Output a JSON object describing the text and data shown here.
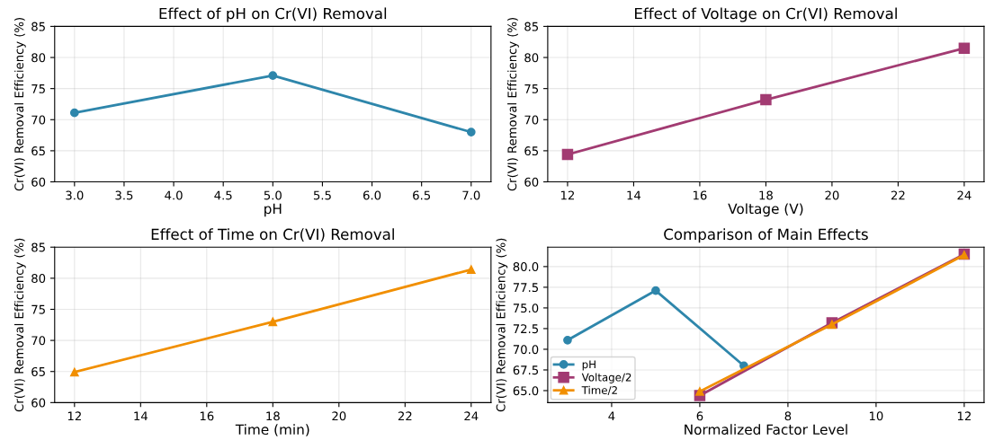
{
  "chart_data": [
    {
      "type": "line",
      "title": "Effect of pH on Cr(VI) Removal",
      "xlabel": "pH",
      "ylabel": "Cr(VI) Removal Efficiency (%)",
      "x": [
        3,
        5,
        7
      ],
      "series": [
        {
          "color": "#2e86ab",
          "values": [
            71.1,
            77.1,
            68.0
          ],
          "marker": "circle"
        }
      ],
      "xlim": [
        2.8,
        7.2
      ],
      "xticks": [
        {
          "value": 3,
          "label": "3.0"
        },
        {
          "value": 3.5,
          "label": "3.5"
        },
        {
          "value": 4,
          "label": "4.0"
        },
        {
          "value": 4.5,
          "label": "4.5"
        },
        {
          "value": 5,
          "label": "5.0"
        },
        {
          "value": 5.5,
          "label": "5.5"
        },
        {
          "value": 6,
          "label": "6.0"
        },
        {
          "value": 6.5,
          "label": "6.5"
        },
        {
          "value": 7,
          "label": "7.0"
        }
      ],
      "ylim": [
        60,
        85
      ],
      "yticks": [
        60,
        65,
        70,
        75,
        80,
        85
      ],
      "grid": true,
      "line_style": "solid"
    },
    {
      "type": "line",
      "title": "Effect of Voltage on Cr(VI) Removal",
      "xlabel": "Voltage (V)",
      "ylabel": "Cr(VI) Removal Efficiency (%)",
      "x": [
        12,
        18,
        24
      ],
      "series": [
        {
          "color": "#a23b72",
          "values": [
            64.4,
            73.2,
            81.5
          ],
          "marker": "square"
        }
      ],
      "xlim": [
        11.4,
        24.6
      ],
      "xticks": [
        12,
        14,
        16,
        18,
        20,
        22,
        24
      ],
      "ylim": [
        60,
        85
      ],
      "yticks": [
        60,
        65,
        70,
        75,
        80,
        85
      ],
      "grid": true,
      "line_style": "solid"
    },
    {
      "type": "line",
      "title": "Effect of Time on Cr(VI) Removal",
      "xlabel": "Time (min)",
      "ylabel": "Cr(VI) Removal Efficiency (%)",
      "x": [
        12,
        18,
        24
      ],
      "series": [
        {
          "color": "#f18f01",
          "values": [
            64.9,
            73.0,
            81.4
          ],
          "marker": "triangle"
        }
      ],
      "xlim": [
        11.4,
        24.6
      ],
      "xticks": [
        12,
        14,
        16,
        18,
        20,
        22,
        24
      ],
      "ylim": [
        60,
        85
      ],
      "yticks": [
        60,
        65,
        70,
        75,
        80,
        85
      ],
      "grid": true,
      "line_style": "solid"
    },
    {
      "type": "line",
      "title": "Comparison of Main Effects",
      "xlabel": "Normalized Factor Level",
      "ylabel": "Cr(VI) Removal Efficiency (%)",
      "series": [
        {
          "name": "pH",
          "color": "#2e86ab",
          "x": [
            3,
            5,
            7
          ],
          "values": [
            71.1,
            77.1,
            68.0
          ],
          "marker": "circle"
        },
        {
          "name": "Voltage/2",
          "color": "#a23b72",
          "x": [
            6,
            9,
            12
          ],
          "values": [
            64.4,
            73.2,
            81.5
          ],
          "marker": "square"
        },
        {
          "name": "Time/2",
          "color": "#f18f01",
          "x": [
            6,
            9,
            12
          ],
          "values": [
            64.9,
            73.0,
            81.4
          ],
          "marker": "triangle"
        }
      ],
      "xlim": [
        2.55,
        12.45
      ],
      "xticks": [
        4,
        6,
        8,
        10,
        12
      ],
      "ylim": [
        63.55,
        82.35
      ],
      "yticks": [
        {
          "value": 65,
          "label": "65.0"
        },
        {
          "value": 67.5,
          "label": "67.5"
        },
        {
          "value": 70,
          "label": "70.0"
        },
        {
          "value": 72.5,
          "label": "72.5"
        },
        {
          "value": 75,
          "label": "75.0"
        },
        {
          "value": 77.5,
          "label": "77.5"
        },
        {
          "value": 80,
          "label": "80.0"
        }
      ],
      "grid": true,
      "legend": "lower left",
      "line_style": "solid"
    }
  ]
}
